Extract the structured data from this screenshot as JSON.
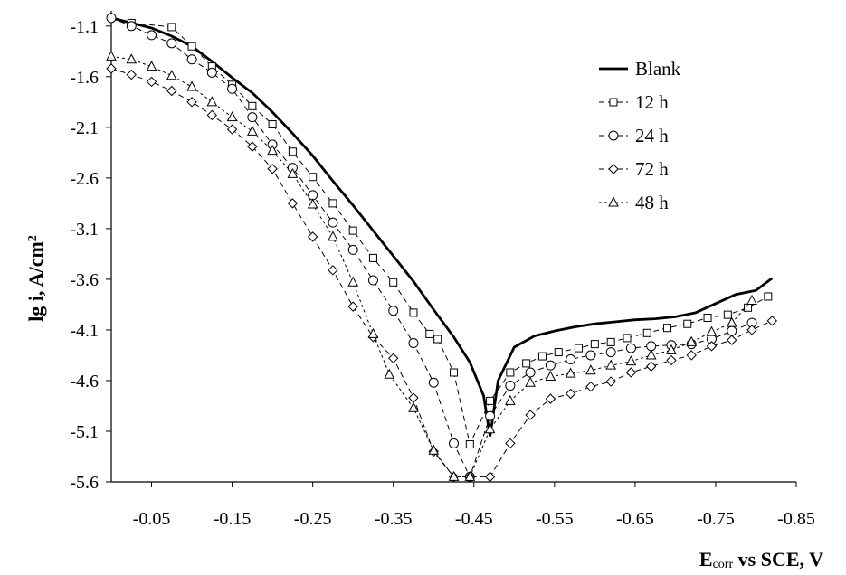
{
  "chart_data": {
    "type": "line",
    "xlabel": {
      "main": "E",
      "sub": "corr",
      "rest": " vs SCE, V"
    },
    "ylabel": {
      "main": "lg i, A/cm",
      "sup": "2"
    },
    "xlim": [
      0,
      -0.85
    ],
    "ylim": [
      -5.6,
      -0.95
    ],
    "x_ticks": [
      -0.05,
      -0.15,
      -0.25,
      -0.35,
      -0.45,
      -0.55,
      -0.65,
      -0.75,
      -0.85
    ],
    "x_tick_labels": [
      "-0.05",
      "-0.15",
      "-0.25",
      "-0.35",
      "-0.45",
      "-0.55",
      "-0.65",
      "-0.75",
      "-0.85"
    ],
    "y_ticks": [
      -1.1,
      -1.6,
      -2.1,
      -2.6,
      -3.1,
      -3.6,
      -4.1,
      -4.6,
      -5.1,
      -5.6
    ],
    "y_tick_labels": [
      "-1.1",
      "-1.6",
      "-2.1",
      "-2.6",
      "-3.1",
      "-3.6",
      "-4.1",
      "-4.6",
      "-5.1",
      "-5.6"
    ],
    "grid": false,
    "legend_position": "top-right",
    "series": [
      {
        "name": "Blank",
        "marker": "none",
        "line": "solid",
        "x": [
          0,
          -0.025,
          -0.05,
          -0.075,
          -0.1,
          -0.125,
          -0.15,
          -0.175,
          -0.2,
          -0.225,
          -0.25,
          -0.275,
          -0.3,
          -0.325,
          -0.35,
          -0.375,
          -0.4,
          -0.425,
          -0.445,
          -0.462,
          -0.47,
          -0.48,
          -0.5,
          -0.525,
          -0.55,
          -0.575,
          -0.6,
          -0.625,
          -0.65,
          -0.675,
          -0.7,
          -0.725,
          -0.75,
          -0.775,
          -0.8,
          -0.82
        ],
        "y": [
          -1.02,
          -1.07,
          -1.12,
          -1.2,
          -1.3,
          -1.45,
          -1.61,
          -1.76,
          -1.95,
          -2.16,
          -2.38,
          -2.63,
          -2.87,
          -3.12,
          -3.37,
          -3.62,
          -3.9,
          -4.17,
          -4.42,
          -4.75,
          -5.15,
          -4.6,
          -4.27,
          -4.16,
          -4.11,
          -4.07,
          -4.04,
          -4.02,
          -4.0,
          -3.99,
          -3.97,
          -3.93,
          -3.84,
          -3.75,
          -3.71,
          -3.59
        ]
      },
      {
        "name": "12 h",
        "marker": "square",
        "line": "dashed",
        "x": [
          -0.025,
          -0.075,
          -0.1,
          -0.125,
          -0.15,
          -0.175,
          -0.2,
          -0.225,
          -0.25,
          -0.275,
          -0.3,
          -0.325,
          -0.35,
          -0.375,
          -0.395,
          -0.405,
          -0.425,
          -0.445,
          -0.47,
          -0.495,
          -0.515,
          -0.535,
          -0.555,
          -0.58,
          -0.6,
          -0.62,
          -0.64,
          -0.665,
          -0.69,
          -0.715,
          -0.74,
          -0.765,
          -0.79,
          -0.815
        ],
        "y": [
          -1.07,
          -1.11,
          -1.3,
          -1.5,
          -1.68,
          -1.89,
          -2.07,
          -2.34,
          -2.59,
          -2.85,
          -3.12,
          -3.39,
          -3.63,
          -3.93,
          -4.14,
          -4.19,
          -4.52,
          -5.23,
          -4.8,
          -4.52,
          -4.43,
          -4.36,
          -4.32,
          -4.28,
          -4.24,
          -4.22,
          -4.18,
          -4.13,
          -4.08,
          -4.04,
          -3.98,
          -3.95,
          -3.88,
          -3.77
        ]
      },
      {
        "name": "24 h",
        "marker": "circle",
        "line": "dashed",
        "x": [
          0,
          -0.025,
          -0.05,
          -0.075,
          -0.1,
          -0.125,
          -0.15,
          -0.175,
          -0.2,
          -0.225,
          -0.25,
          -0.275,
          -0.3,
          -0.325,
          -0.35,
          -0.375,
          -0.4,
          -0.425,
          -0.445,
          -0.47,
          -0.495,
          -0.52,
          -0.545,
          -0.57,
          -0.595,
          -0.62,
          -0.645,
          -0.67,
          -0.695,
          -0.72,
          -0.745,
          -0.77,
          -0.795
        ],
        "y": [
          -1.02,
          -1.1,
          -1.19,
          -1.27,
          -1.43,
          -1.56,
          -1.72,
          -2.0,
          -2.27,
          -2.5,
          -2.77,
          -3.04,
          -3.31,
          -3.61,
          -3.91,
          -4.23,
          -4.62,
          -5.22,
          -5.55,
          -4.95,
          -4.65,
          -4.52,
          -4.45,
          -4.39,
          -4.35,
          -4.32,
          -4.28,
          -4.26,
          -4.25,
          -4.24,
          -4.19,
          -4.11,
          -4.03
        ]
      },
      {
        "name": "72 h",
        "marker": "diamond",
        "line": "dashed",
        "x": [
          0,
          -0.025,
          -0.05,
          -0.075,
          -0.1,
          -0.125,
          -0.15,
          -0.175,
          -0.2,
          -0.225,
          -0.25,
          -0.275,
          -0.3,
          -0.325,
          -0.35,
          -0.375,
          -0.4,
          -0.425,
          -0.445,
          -0.47,
          -0.495,
          -0.52,
          -0.545,
          -0.57,
          -0.595,
          -0.62,
          -0.645,
          -0.67,
          -0.695,
          -0.72,
          -0.745,
          -0.77,
          -0.795,
          -0.82
        ],
        "y": [
          -1.52,
          -1.58,
          -1.65,
          -1.74,
          -1.85,
          -1.98,
          -2.12,
          -2.29,
          -2.51,
          -2.85,
          -3.18,
          -3.51,
          -3.87,
          -4.17,
          -4.38,
          -4.77,
          -5.3,
          -5.55,
          -5.55,
          -5.55,
          -5.22,
          -4.94,
          -4.78,
          -4.73,
          -4.66,
          -4.61,
          -4.52,
          -4.46,
          -4.4,
          -4.35,
          -4.26,
          -4.2,
          -4.1,
          -4.01
        ]
      },
      {
        "name": "48 h",
        "marker": "triangle",
        "line": "dotted",
        "x": [
          0,
          -0.025,
          -0.05,
          -0.075,
          -0.1,
          -0.125,
          -0.15,
          -0.175,
          -0.2,
          -0.225,
          -0.25,
          -0.275,
          -0.3,
          -0.325,
          -0.345,
          -0.375,
          -0.4,
          -0.425,
          -0.445,
          -0.47,
          -0.495,
          -0.52,
          -0.545,
          -0.57,
          -0.595,
          -0.62,
          -0.645,
          -0.67,
          -0.695,
          -0.72,
          -0.745,
          -0.77,
          -0.795
        ],
        "y": [
          -1.4,
          -1.43,
          -1.5,
          -1.59,
          -1.7,
          -1.85,
          -2.0,
          -2.14,
          -2.33,
          -2.56,
          -2.86,
          -3.18,
          -3.63,
          -4.14,
          -4.54,
          -4.87,
          -5.29,
          -5.55,
          -5.55,
          -5.08,
          -4.8,
          -4.62,
          -4.56,
          -4.53,
          -4.5,
          -4.45,
          -4.41,
          -4.35,
          -4.3,
          -4.22,
          -4.12,
          -4.03,
          -3.81
        ]
      }
    ]
  }
}
